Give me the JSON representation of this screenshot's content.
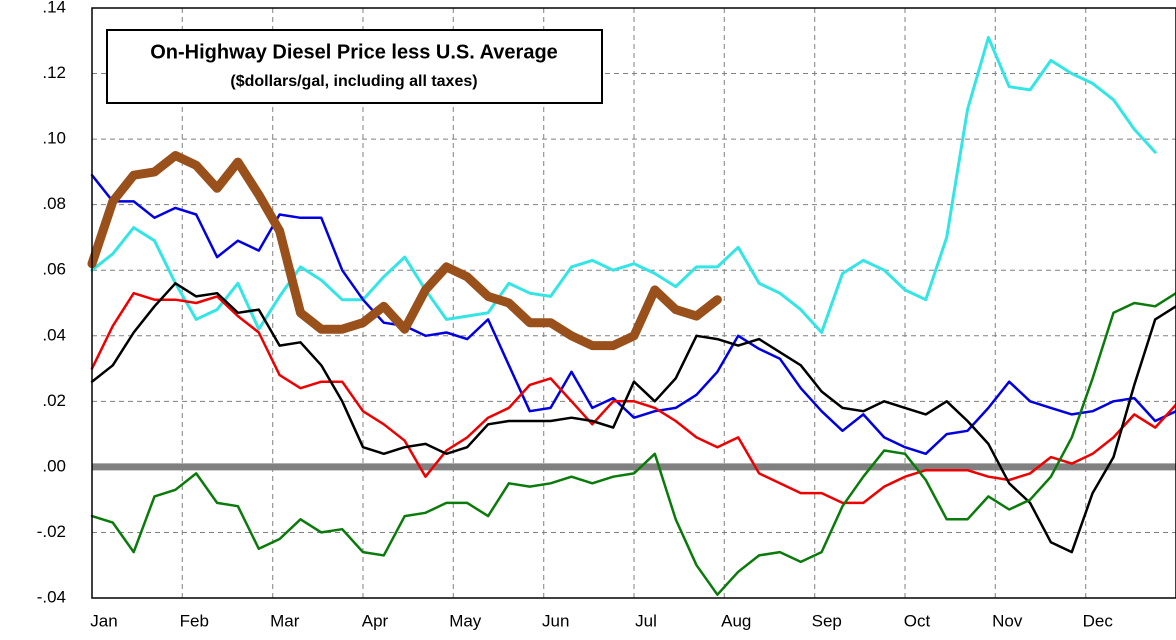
{
  "chart_data": {
    "type": "line",
    "title": "On-Highway Diesel Price  less U.S. Average",
    "subtitle": "($dollars/gal, including all taxes)",
    "x": [
      0,
      1,
      2,
      3,
      4,
      5,
      6,
      7,
      8,
      9,
      10,
      11,
      12,
      13,
      14,
      15,
      16,
      17,
      18,
      19,
      20,
      21,
      22,
      23,
      24,
      25,
      26,
      27,
      28,
      29,
      30,
      31,
      32,
      33,
      34,
      35,
      36,
      37,
      38,
      39,
      40,
      41,
      42,
      43,
      44,
      45,
      46,
      47,
      48,
      49,
      50,
      51,
      52
    ],
    "xlim": [
      0,
      52
    ],
    "xticks": [
      {
        "value": 0,
        "label": "Jan"
      },
      {
        "value": 4.33,
        "label": "Feb"
      },
      {
        "value": 8.67,
        "label": "Mar"
      },
      {
        "value": 13,
        "label": "Apr"
      },
      {
        "value": 17.33,
        "label": "May"
      },
      {
        "value": 21.67,
        "label": "Jun"
      },
      {
        "value": 26,
        "label": "Jul"
      },
      {
        "value": 30.33,
        "label": "Aug"
      },
      {
        "value": 34.67,
        "label": "Sep"
      },
      {
        "value": 39,
        "label": "Oct"
      },
      {
        "value": 43.33,
        "label": "Nov"
      },
      {
        "value": 47.67,
        "label": "Dec"
      }
    ],
    "ylim": [
      -0.04,
      0.14
    ],
    "yticks": [
      {
        "value": -0.04,
        "label": "-.04"
      },
      {
        "value": -0.02,
        "label": "-.02"
      },
      {
        "value": 0,
        "label": ".00"
      },
      {
        "value": 0.02,
        "label": ".02"
      },
      {
        "value": 0.04,
        "label": ".04"
      },
      {
        "value": 0.06,
        "label": ".06"
      },
      {
        "value": 0.08,
        "label": ".08"
      },
      {
        "value": 0.1,
        "label": ".10"
      },
      {
        "value": 0.12,
        "label": ".12"
      },
      {
        "value": 0.14,
        "label": ".14"
      }
    ],
    "grid": true,
    "zero_line": 0,
    "series": [
      {
        "color": "#33e5e5",
        "width": 3,
        "values": [
          0.06,
          0.065,
          0.073,
          0.069,
          0.056,
          0.045,
          0.048,
          0.056,
          0.042,
          0.052,
          0.061,
          0.057,
          0.051,
          0.051,
          0.058,
          0.064,
          0.054,
          0.045,
          0.046,
          0.047,
          0.056,
          0.053,
          0.052,
          0.061,
          0.063,
          0.06,
          0.062,
          0.059,
          0.055,
          0.061,
          0.061,
          0.067,
          0.056,
          0.053,
          0.048,
          0.041,
          0.059,
          0.063,
          0.06,
          0.054,
          0.051,
          0.07,
          0.109,
          0.131,
          0.116,
          0.115,
          0.124,
          0.12,
          0.117,
          0.112,
          0.103,
          0.096,
          null
        ]
      },
      {
        "color": "#0000e0",
        "width": 2.5,
        "values": [
          0.089,
          0.081,
          0.081,
          0.076,
          0.079,
          0.077,
          0.064,
          0.069,
          0.066,
          0.077,
          0.076,
          0.076,
          0.06,
          0.051,
          0.044,
          0.043,
          0.04,
          0.041,
          0.039,
          0.045,
          0.031,
          0.017,
          0.018,
          0.029,
          0.018,
          0.021,
          0.015,
          0.017,
          0.018,
          0.022,
          0.029,
          0.04,
          0.036,
          0.033,
          0.024,
          0.017,
          0.011,
          0.016,
          0.009,
          0.006,
          0.004,
          0.01,
          0.011,
          0.018,
          0.026,
          0.02,
          0.018,
          0.016,
          0.017,
          0.02,
          0.021,
          0.014,
          0.017
        ]
      },
      {
        "color": "#ee0000",
        "width": 2.5,
        "values": [
          0.03,
          0.043,
          0.053,
          0.051,
          0.051,
          0.05,
          0.052,
          0.046,
          0.041,
          0.028,
          0.024,
          0.026,
          0.026,
          0.017,
          0.013,
          0.008,
          -0.003,
          0.005,
          0.009,
          0.015,
          0.018,
          0.025,
          0.027,
          0.02,
          0.013,
          0.02,
          0.02,
          0.018,
          0.014,
          0.009,
          0.006,
          0.009,
          -0.002,
          -0.005,
          -0.008,
          -0.008,
          -0.011,
          -0.011,
          -0.006,
          -0.003,
          -0.001,
          -0.001,
          -0.001,
          -0.003,
          -0.004,
          -0.002,
          0.003,
          0.001,
          0.004,
          0.009,
          0.016,
          0.012,
          0.019
        ]
      },
      {
        "color": "#000000",
        "width": 2.5,
        "values": [
          0.026,
          0.031,
          0.041,
          0.049,
          0.056,
          0.052,
          0.053,
          0.047,
          0.048,
          0.037,
          0.038,
          0.031,
          0.02,
          0.006,
          0.004,
          0.006,
          0.007,
          0.004,
          0.006,
          0.013,
          0.014,
          0.014,
          0.014,
          0.015,
          0.014,
          0.012,
          0.026,
          0.02,
          0.027,
          0.04,
          0.039,
          0.037,
          0.039,
          0.035,
          0.031,
          0.023,
          0.018,
          0.017,
          0.02,
          0.018,
          0.016,
          0.02,
          0.014,
          0.007,
          -0.005,
          -0.011,
          -0.023,
          -0.026,
          -0.008,
          0.003,
          0.025,
          0.045,
          0.049
        ]
      },
      {
        "color": "#0a7a0a",
        "width": 2.5,
        "values": [
          -0.015,
          -0.017,
          -0.026,
          -0.009,
          -0.007,
          -0.002,
          -0.011,
          -0.012,
          -0.025,
          -0.022,
          -0.016,
          -0.02,
          -0.019,
          -0.026,
          -0.027,
          -0.015,
          -0.014,
          -0.011,
          -0.011,
          -0.015,
          -0.005,
          -0.006,
          -0.005,
          -0.003,
          -0.005,
          -0.003,
          -0.002,
          0.004,
          -0.016,
          -0.03,
          -0.039,
          -0.032,
          -0.027,
          -0.026,
          -0.029,
          -0.026,
          -0.012,
          -0.003,
          0.005,
          0.004,
          -0.004,
          -0.016,
          -0.016,
          -0.009,
          -0.013,
          -0.01,
          -0.003,
          0.009,
          0.027,
          0.047,
          0.05,
          0.049,
          0.053
        ]
      },
      {
        "color": "#99501a",
        "width": 9,
        "values": [
          0.062,
          0.081,
          0.089,
          0.09,
          0.095,
          0.092,
          0.085,
          0.093,
          0.083,
          0.072,
          0.047,
          0.042,
          0.042,
          0.044,
          0.049,
          0.042,
          0.054,
          0.061,
          0.058,
          0.052,
          0.05,
          0.044,
          0.044,
          0.04,
          0.037,
          0.037,
          0.04,
          0.054,
          0.048,
          0.046,
          0.051,
          null,
          null,
          null,
          null,
          null,
          null,
          null,
          null,
          null,
          null,
          null,
          null,
          null,
          null,
          null,
          null,
          null,
          null,
          null,
          null,
          null,
          null
        ]
      }
    ]
  }
}
